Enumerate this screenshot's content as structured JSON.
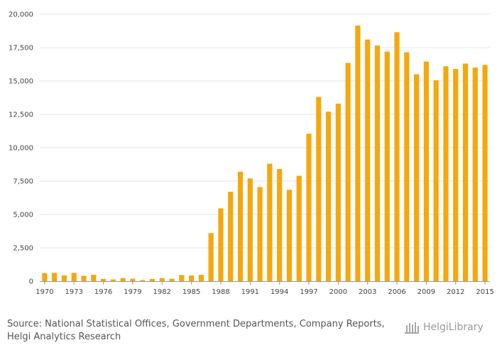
{
  "chart_data": {
    "type": "bar",
    "title": "",
    "xlabel": "",
    "ylabel": "",
    "ylim": [
      0,
      20000
    ],
    "yticks": [
      0,
      2500,
      5000,
      7500,
      10000,
      12500,
      15000,
      17500,
      20000
    ],
    "ytick_labels": [
      "0",
      "2,500",
      "5,000",
      "7,500",
      "10,000",
      "12,500",
      "15,000",
      "17,500",
      "20,000"
    ],
    "grid": true,
    "categories": [
      "1970",
      "1971",
      "1972",
      "1973",
      "1974",
      "1975",
      "1976",
      "1977",
      "1978",
      "1979",
      "1980",
      "1981",
      "1982",
      "1983",
      "1984",
      "1985",
      "1986",
      "1987",
      "1988",
      "1989",
      "1990",
      "1991",
      "1992",
      "1993",
      "1994",
      "1995",
      "1996",
      "1997",
      "1998",
      "1999",
      "2000",
      "2001",
      "2002",
      "2003",
      "2004",
      "2005",
      "2006",
      "2007",
      "2008",
      "2009",
      "2010",
      "2011",
      "2012",
      "2013",
      "2014",
      "2015"
    ],
    "xtick_labels": [
      "1970",
      "1973",
      "1976",
      "1979",
      "1982",
      "1985",
      "1988",
      "1991",
      "1994",
      "1997",
      "2000",
      "2003",
      "2006",
      "2009",
      "2012",
      "2015"
    ],
    "values": [
      600,
      620,
      430,
      620,
      400,
      480,
      170,
      130,
      230,
      180,
      80,
      160,
      230,
      180,
      460,
      430,
      470,
      3600,
      5450,
      6700,
      8200,
      7700,
      7050,
      8800,
      8400,
      6850,
      7900,
      11050,
      13800,
      12700,
      13300,
      16350,
      19150,
      18100,
      17650,
      17200,
      18650,
      17150,
      15500,
      16450,
      15050,
      16100,
      15900,
      16300,
      16000,
      16200
    ],
    "bar_color": "#f5a70c",
    "grid_color": "#e6e6e6"
  },
  "footer": {
    "source_line1": "Source: National Statistical Offices, Government Departments, Company Reports,",
    "source_line2": "Helgi Analytics Research",
    "logo_text": "HelgiLibrary"
  }
}
